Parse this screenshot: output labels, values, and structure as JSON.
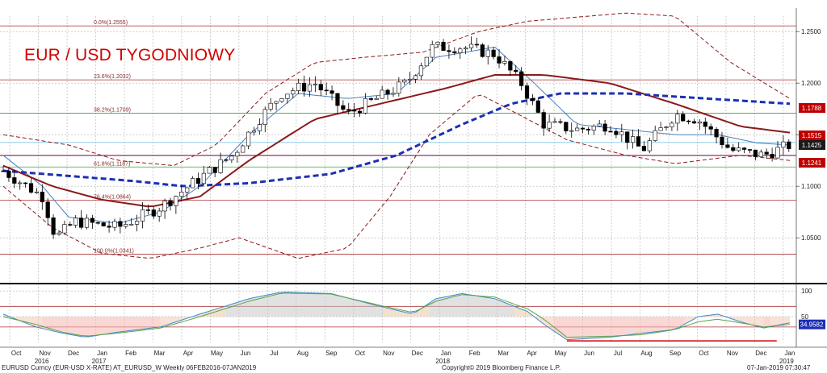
{
  "chart_data": [
    {
      "type": "candlestick",
      "title": "EUR / USD TYGODNIOWY",
      "title_color": "#d40000",
      "ylim": [
        1.015,
        1.265
      ],
      "y_ticks": [
        1.05,
        1.1,
        1.15,
        1.2,
        1.25
      ],
      "y_tick_labels": [
        "1.0500",
        "1.1000",
        "1.1500",
        "1.2000",
        "1.2500"
      ],
      "fib_levels": [
        {
          "label": "0.0%(1.2555)",
          "value": 1.2555
        },
        {
          "label": "23.6%(1.2032)",
          "value": 1.2032
        },
        {
          "label": "38.2%(1.1709)",
          "value": 1.1709
        },
        {
          "label": "61.8%(1.1187)",
          "value": 1.1187
        },
        {
          "label": "76.4%(1.0864)",
          "value": 1.0864
        },
        {
          "label": "100.0%(1.0341)",
          "value": 1.0341
        }
      ],
      "last_value_tags": [
        {
          "label": "1.1788",
          "value": 1.1788,
          "color": "#c00000",
          "series": "ma-long"
        },
        {
          "label": "1.1515",
          "value": 1.1515,
          "color": "#c00000",
          "series": "ma-mid"
        },
        {
          "label": "1.1425",
          "value": 1.1425,
          "color": "#ffffff",
          "series": "price"
        },
        {
          "label": "1.1241",
          "value": 1.1241,
          "color": "#c00000",
          "series": "band-lower"
        }
      ],
      "horizontal_lines": [
        1.1299
      ],
      "series": [
        {
          "name": "price",
          "kind": "candles",
          "color": "#000000"
        },
        {
          "name": "ma-short",
          "kind": "line",
          "color": "#4a7fbf"
        },
        {
          "name": "ma-mid",
          "kind": "line",
          "color": "#8b1a1a"
        },
        {
          "name": "ma-long",
          "kind": "line",
          "color": "#1c2fb4",
          "dashed": true
        },
        {
          "name": "band-upper",
          "kind": "line",
          "color": "#8b1a1a",
          "dashed": true
        },
        {
          "name": "band-lower",
          "kind": "line",
          "color": "#8b1a1a",
          "dashed": true
        }
      ],
      "keypoints": {
        "price": [
          [
            0,
            1.115
          ],
          [
            12,
            1.09
          ],
          [
            16,
            1.05
          ],
          [
            22,
            1.066
          ],
          [
            35,
            1.06
          ],
          [
            48,
            1.08
          ],
          [
            60,
            1.108
          ],
          [
            70,
            1.13
          ],
          [
            78,
            1.165
          ],
          [
            85,
            1.19
          ],
          [
            95,
            1.2
          ],
          [
            105,
            1.17
          ],
          [
            114,
            1.185
          ],
          [
            123,
            1.2
          ],
          [
            131,
            1.235
          ],
          [
            140,
            1.235
          ],
          [
            150,
            1.228
          ],
          [
            158,
            1.2
          ],
          [
            165,
            1.16
          ],
          [
            175,
            1.155
          ],
          [
            185,
            1.16
          ],
          [
            195,
            1.135
          ],
          [
            205,
            1.17
          ],
          [
            212,
            1.165
          ],
          [
            222,
            1.135
          ],
          [
            232,
            1.13
          ],
          [
            240,
            1.14
          ]
        ],
        "ma-short": [
          [
            0,
            1.13
          ],
          [
            12,
            1.1
          ],
          [
            20,
            1.07
          ],
          [
            35,
            1.064
          ],
          [
            48,
            1.075
          ],
          [
            60,
            1.1
          ],
          [
            75,
            1.15
          ],
          [
            90,
            1.19
          ],
          [
            105,
            1.185
          ],
          [
            120,
            1.19
          ],
          [
            132,
            1.225
          ],
          [
            150,
            1.235
          ],
          [
            162,
            1.2
          ],
          [
            175,
            1.16
          ],
          [
            190,
            1.155
          ],
          [
            205,
            1.15
          ],
          [
            218,
            1.15
          ],
          [
            230,
            1.142
          ],
          [
            240,
            1.14
          ]
        ],
        "ma-mid": [
          [
            0,
            1.12
          ],
          [
            15,
            1.1
          ],
          [
            30,
            1.087
          ],
          [
            45,
            1.08
          ],
          [
            60,
            1.09
          ],
          [
            75,
            1.125
          ],
          [
            95,
            1.165
          ],
          [
            115,
            1.18
          ],
          [
            135,
            1.195
          ],
          [
            150,
            1.208
          ],
          [
            165,
            1.208
          ],
          [
            185,
            1.2
          ],
          [
            205,
            1.18
          ],
          [
            225,
            1.158
          ],
          [
            240,
            1.152
          ]
        ],
        "ma-long": [
          [
            0,
            1.115
          ],
          [
            20,
            1.11
          ],
          [
            40,
            1.105
          ],
          [
            55,
            1.1
          ],
          [
            75,
            1.103
          ],
          [
            100,
            1.112
          ],
          [
            120,
            1.13
          ],
          [
            140,
            1.16
          ],
          [
            155,
            1.18
          ],
          [
            170,
            1.19
          ],
          [
            190,
            1.19
          ],
          [
            210,
            1.186
          ],
          [
            240,
            1.18
          ]
        ],
        "band-upper": [
          [
            0,
            1.15
          ],
          [
            20,
            1.14
          ],
          [
            35,
            1.125
          ],
          [
            52,
            1.12
          ],
          [
            65,
            1.14
          ],
          [
            80,
            1.19
          ],
          [
            95,
            1.22
          ],
          [
            110,
            1.225
          ],
          [
            128,
            1.23
          ],
          [
            145,
            1.25
          ],
          [
            160,
            1.26
          ],
          [
            190,
            1.268
          ],
          [
            205,
            1.265
          ],
          [
            222,
            1.22
          ],
          [
            240,
            1.185
          ]
        ],
        "band-lower": [
          [
            0,
            1.1
          ],
          [
            15,
            1.06
          ],
          [
            30,
            1.035
          ],
          [
            45,
            1.03
          ],
          [
            60,
            1.04
          ],
          [
            72,
            1.05
          ],
          [
            90,
            1.03
          ],
          [
            105,
            1.04
          ],
          [
            118,
            1.09
          ],
          [
            130,
            1.15
          ],
          [
            145,
            1.19
          ],
          [
            160,
            1.165
          ],
          [
            172,
            1.145
          ],
          [
            190,
            1.13
          ],
          [
            205,
            1.122
          ],
          [
            225,
            1.13
          ],
          [
            240,
            1.125
          ]
        ]
      }
    },
    {
      "type": "line",
      "ylim": [
        0,
        105
      ],
      "y_ticks": [
        50,
        100
      ],
      "y_tick_labels": [
        "50",
        "100"
      ],
      "reference_lines": [
        30,
        70
      ],
      "last_value_tags": [
        {
          "label": "34.9582",
          "value": 34.9582,
          "color": "#1c2fb4"
        }
      ],
      "series": [
        {
          "name": "oscillator-fast",
          "color": "#3c8cc8"
        },
        {
          "name": "oscillator-slow",
          "color": "#5ca04c"
        }
      ],
      "keypoints": {
        "oscillator-fast": [
          [
            0,
            55
          ],
          [
            10,
            30
          ],
          [
            18,
            18
          ],
          [
            25,
            10
          ],
          [
            35,
            20
          ],
          [
            48,
            30
          ],
          [
            60,
            55
          ],
          [
            75,
            85
          ],
          [
            85,
            98
          ],
          [
            100,
            95
          ],
          [
            115,
            70
          ],
          [
            125,
            55
          ],
          [
            132,
            85
          ],
          [
            140,
            95
          ],
          [
            150,
            85
          ],
          [
            160,
            60
          ],
          [
            165,
            35
          ],
          [
            172,
            5
          ],
          [
            185,
            10
          ],
          [
            195,
            18
          ],
          [
            205,
            25
          ],
          [
            212,
            50
          ],
          [
            218,
            55
          ],
          [
            225,
            40
          ],
          [
            232,
            28
          ],
          [
            240,
            38
          ]
        ],
        "oscillator-slow": [
          [
            0,
            50
          ],
          [
            10,
            35
          ],
          [
            18,
            20
          ],
          [
            25,
            12
          ],
          [
            35,
            18
          ],
          [
            48,
            28
          ],
          [
            60,
            50
          ],
          [
            75,
            80
          ],
          [
            85,
            96
          ],
          [
            100,
            94
          ],
          [
            115,
            72
          ],
          [
            125,
            58
          ],
          [
            132,
            80
          ],
          [
            140,
            93
          ],
          [
            150,
            88
          ],
          [
            160,
            65
          ],
          [
            165,
            45
          ],
          [
            172,
            10
          ],
          [
            185,
            12
          ],
          [
            195,
            15
          ],
          [
            205,
            25
          ],
          [
            212,
            40
          ],
          [
            218,
            45
          ],
          [
            225,
            38
          ],
          [
            232,
            30
          ],
          [
            240,
            35
          ]
        ]
      }
    }
  ],
  "x_axis": {
    "months": [
      "Oct",
      "Nov",
      "Dec",
      "Jan",
      "Feb",
      "Mar",
      "Apr",
      "May",
      "Jun",
      "Jul",
      "Aug",
      "Sep",
      "Oct",
      "Nov",
      "Dec",
      "Jan",
      "Feb",
      "Mar",
      "Apr",
      "May",
      "Jun",
      "Jul",
      "Aug",
      "Sep",
      "Oct",
      "Nov",
      "Dec",
      "Jan"
    ],
    "years": [
      "2016",
      "2017",
      "2018",
      "2019"
    ]
  },
  "footer": {
    "left": "EURUSD Curncy (EUR-USD X-RATE) AT_EURUSD_W  Weekly 06FEB2016-07JAN2019",
    "center": "Copyright© 2019 Bloomberg Finance L.P.",
    "right": "07-Jan-2019 07:30:47"
  },
  "colors": {
    "grid": "#b0b0b0",
    "fib_line": "#a83232",
    "band_label_bg": "#c00000"
  }
}
